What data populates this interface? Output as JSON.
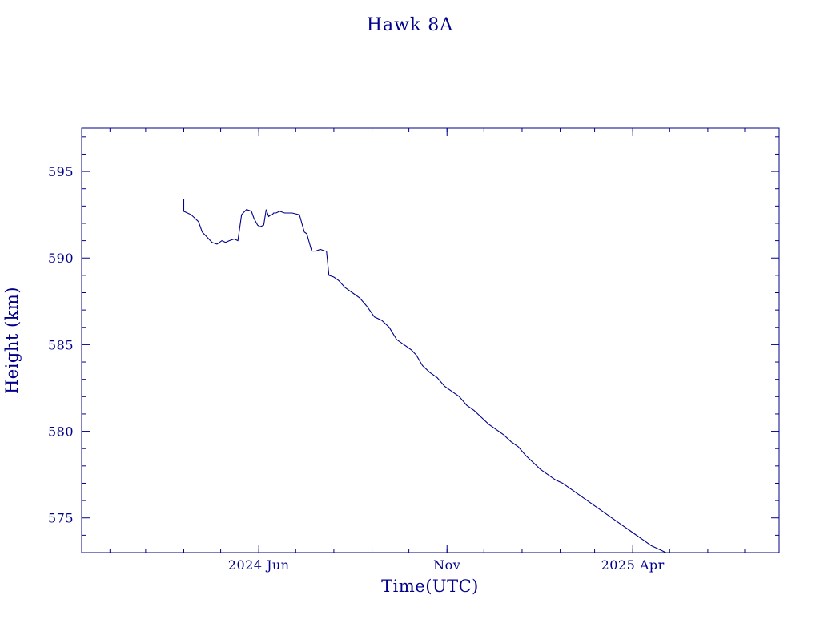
{
  "colors": {
    "ink": "#00008b",
    "background": "#ffffff"
  },
  "chart_data": {
    "type": "line",
    "title": "Hawk 8A",
    "xlabel": "Time(UTC)",
    "ylabel": "Height (km)",
    "grid": false,
    "legend": "none",
    "xlim": [
      "2024-01-09",
      "2025-07-29"
    ],
    "ylim": [
      573,
      597.5
    ],
    "x_ticks": [
      {
        "date": "2024-06-01",
        "label": "2024 Jun"
      },
      {
        "date": "2024-11-01",
        "label": "Nov"
      },
      {
        "date": "2025-04-01",
        "label": "2025 Apr"
      }
    ],
    "y_ticks": [
      {
        "value": 575,
        "label": "575"
      },
      {
        "value": 580,
        "label": "580"
      },
      {
        "value": 585,
        "label": "585"
      },
      {
        "value": 590,
        "label": "590"
      },
      {
        "value": 595,
        "label": "595"
      }
    ],
    "series": [
      {
        "x": [
          "2024-04-01",
          "2024-04-01",
          "2024-04-04",
          "2024-04-07",
          "2024-04-10",
          "2024-04-13",
          "2024-04-16",
          "2024-04-20",
          "2024-04-24",
          "2024-04-28",
          "2024-05-02",
          "2024-05-05",
          "2024-05-08",
          "2024-05-12",
          "2024-05-15",
          "2024-05-18",
          "2024-05-22",
          "2024-05-26",
          "2024-05-28",
          "2024-05-31",
          "2024-06-02",
          "2024-06-05",
          "2024-06-07",
          "2024-06-09",
          "2024-06-11",
          "2024-06-12",
          "2024-06-13",
          "2024-06-15",
          "2024-06-18",
          "2024-06-22",
          "2024-06-28",
          "2024-07-04",
          "2024-07-06",
          "2024-07-08",
          "2024-07-10",
          "2024-07-12",
          "2024-07-14",
          "2024-07-17",
          "2024-07-21",
          "2024-07-25",
          "2024-07-26",
          "2024-07-28",
          "2024-08-01",
          "2024-08-05",
          "2024-08-10",
          "2024-08-16",
          "2024-08-22",
          "2024-08-28",
          "2024-09-03",
          "2024-09-09",
          "2024-09-15",
          "2024-09-21",
          "2024-09-27",
          "2024-10-03",
          "2024-10-07",
          "2024-10-12",
          "2024-10-18",
          "2024-10-24",
          "2024-10-30",
          "2024-11-05",
          "2024-11-11",
          "2024-11-17",
          "2024-11-23",
          "2024-11-29",
          "2024-12-05",
          "2024-12-11",
          "2024-12-17",
          "2024-12-23",
          "2024-12-29",
          "2025-01-04",
          "2025-01-10",
          "2025-01-16",
          "2025-01-22",
          "2025-01-28",
          "2025-02-03",
          "2025-02-09",
          "2025-02-15",
          "2025-02-21",
          "2025-02-27",
          "2025-03-05",
          "2025-03-11",
          "2025-03-17",
          "2025-03-23",
          "2025-03-29",
          "2025-04-04",
          "2025-04-10",
          "2025-04-16",
          "2025-04-22",
          "2025-04-28"
        ],
        "y": [
          593.4,
          592.7,
          592.6,
          592.5,
          592.3,
          592.1,
          591.5,
          591.2,
          590.9,
          590.8,
          591.0,
          590.9,
          591.0,
          591.1,
          591.0,
          592.5,
          592.8,
          592.7,
          592.3,
          591.9,
          591.8,
          591.9,
          592.8,
          592.4,
          592.5,
          592.5,
          592.6,
          592.6,
          592.7,
          592.6,
          592.6,
          592.5,
          592.0,
          591.5,
          591.4,
          590.9,
          590.4,
          590.4,
          590.5,
          590.4,
          590.4,
          589.0,
          588.9,
          588.7,
          588.3,
          588.0,
          587.7,
          587.2,
          586.6,
          586.4,
          586.0,
          585.3,
          585.0,
          584.7,
          584.4,
          583.8,
          583.4,
          583.1,
          582.6,
          582.3,
          582.0,
          581.5,
          581.2,
          580.8,
          580.4,
          580.1,
          579.8,
          579.4,
          579.1,
          578.6,
          578.2,
          577.8,
          577.5,
          577.2,
          577.0,
          576.7,
          576.4,
          576.1,
          575.8,
          575.5,
          575.2,
          574.9,
          574.6,
          574.3,
          574.0,
          573.7,
          573.4,
          573.2,
          573.0
        ]
      }
    ]
  }
}
